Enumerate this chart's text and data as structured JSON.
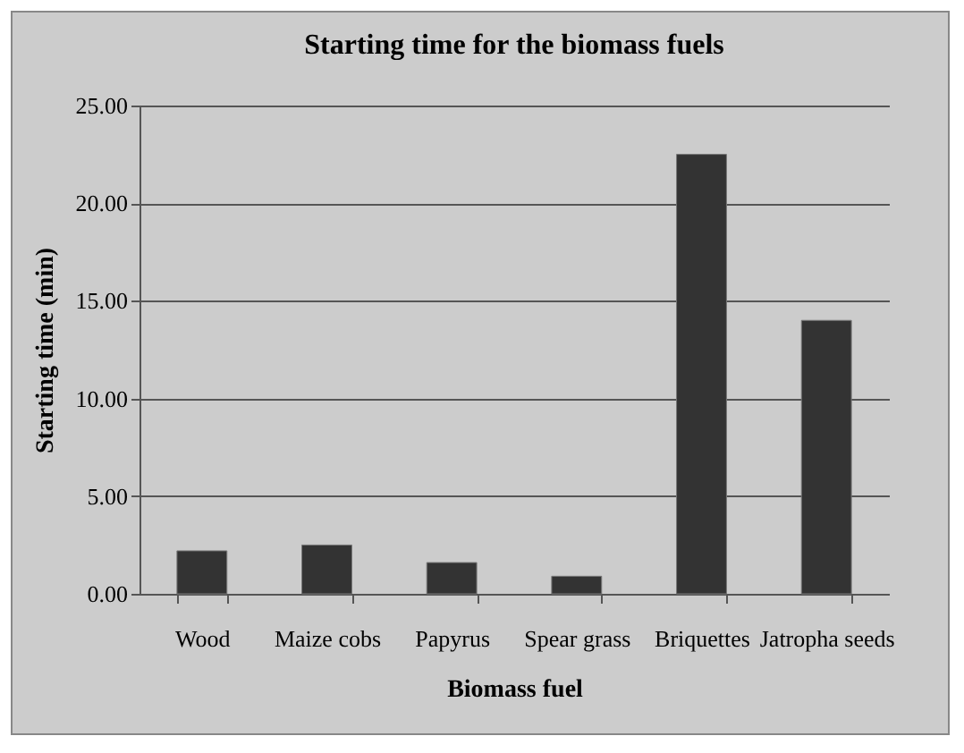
{
  "chart_data": {
    "type": "bar",
    "title": "Starting time for the biomass fuels",
    "xlabel": "Biomass fuel",
    "ylabel": "Starting time (min)",
    "categories": [
      "Wood",
      "Maize cobs",
      "Papyrus",
      "Spear grass",
      "Briquettes",
      "Jatropha seeds"
    ],
    "values": [
      2.2,
      2.5,
      1.6,
      0.9,
      22.5,
      14.0
    ],
    "color": "#333333",
    "ylim": [
      0,
      25
    ],
    "yticks": [
      {
        "value": 0,
        "label": "0.00"
      },
      {
        "value": 5,
        "label": "5.00"
      },
      {
        "value": 10,
        "label": "10.00"
      },
      {
        "value": 15,
        "label": "15.00"
      },
      {
        "value": 20,
        "label": "20.00"
      },
      {
        "value": 25,
        "label": "25.00"
      }
    ],
    "grid": "y"
  }
}
